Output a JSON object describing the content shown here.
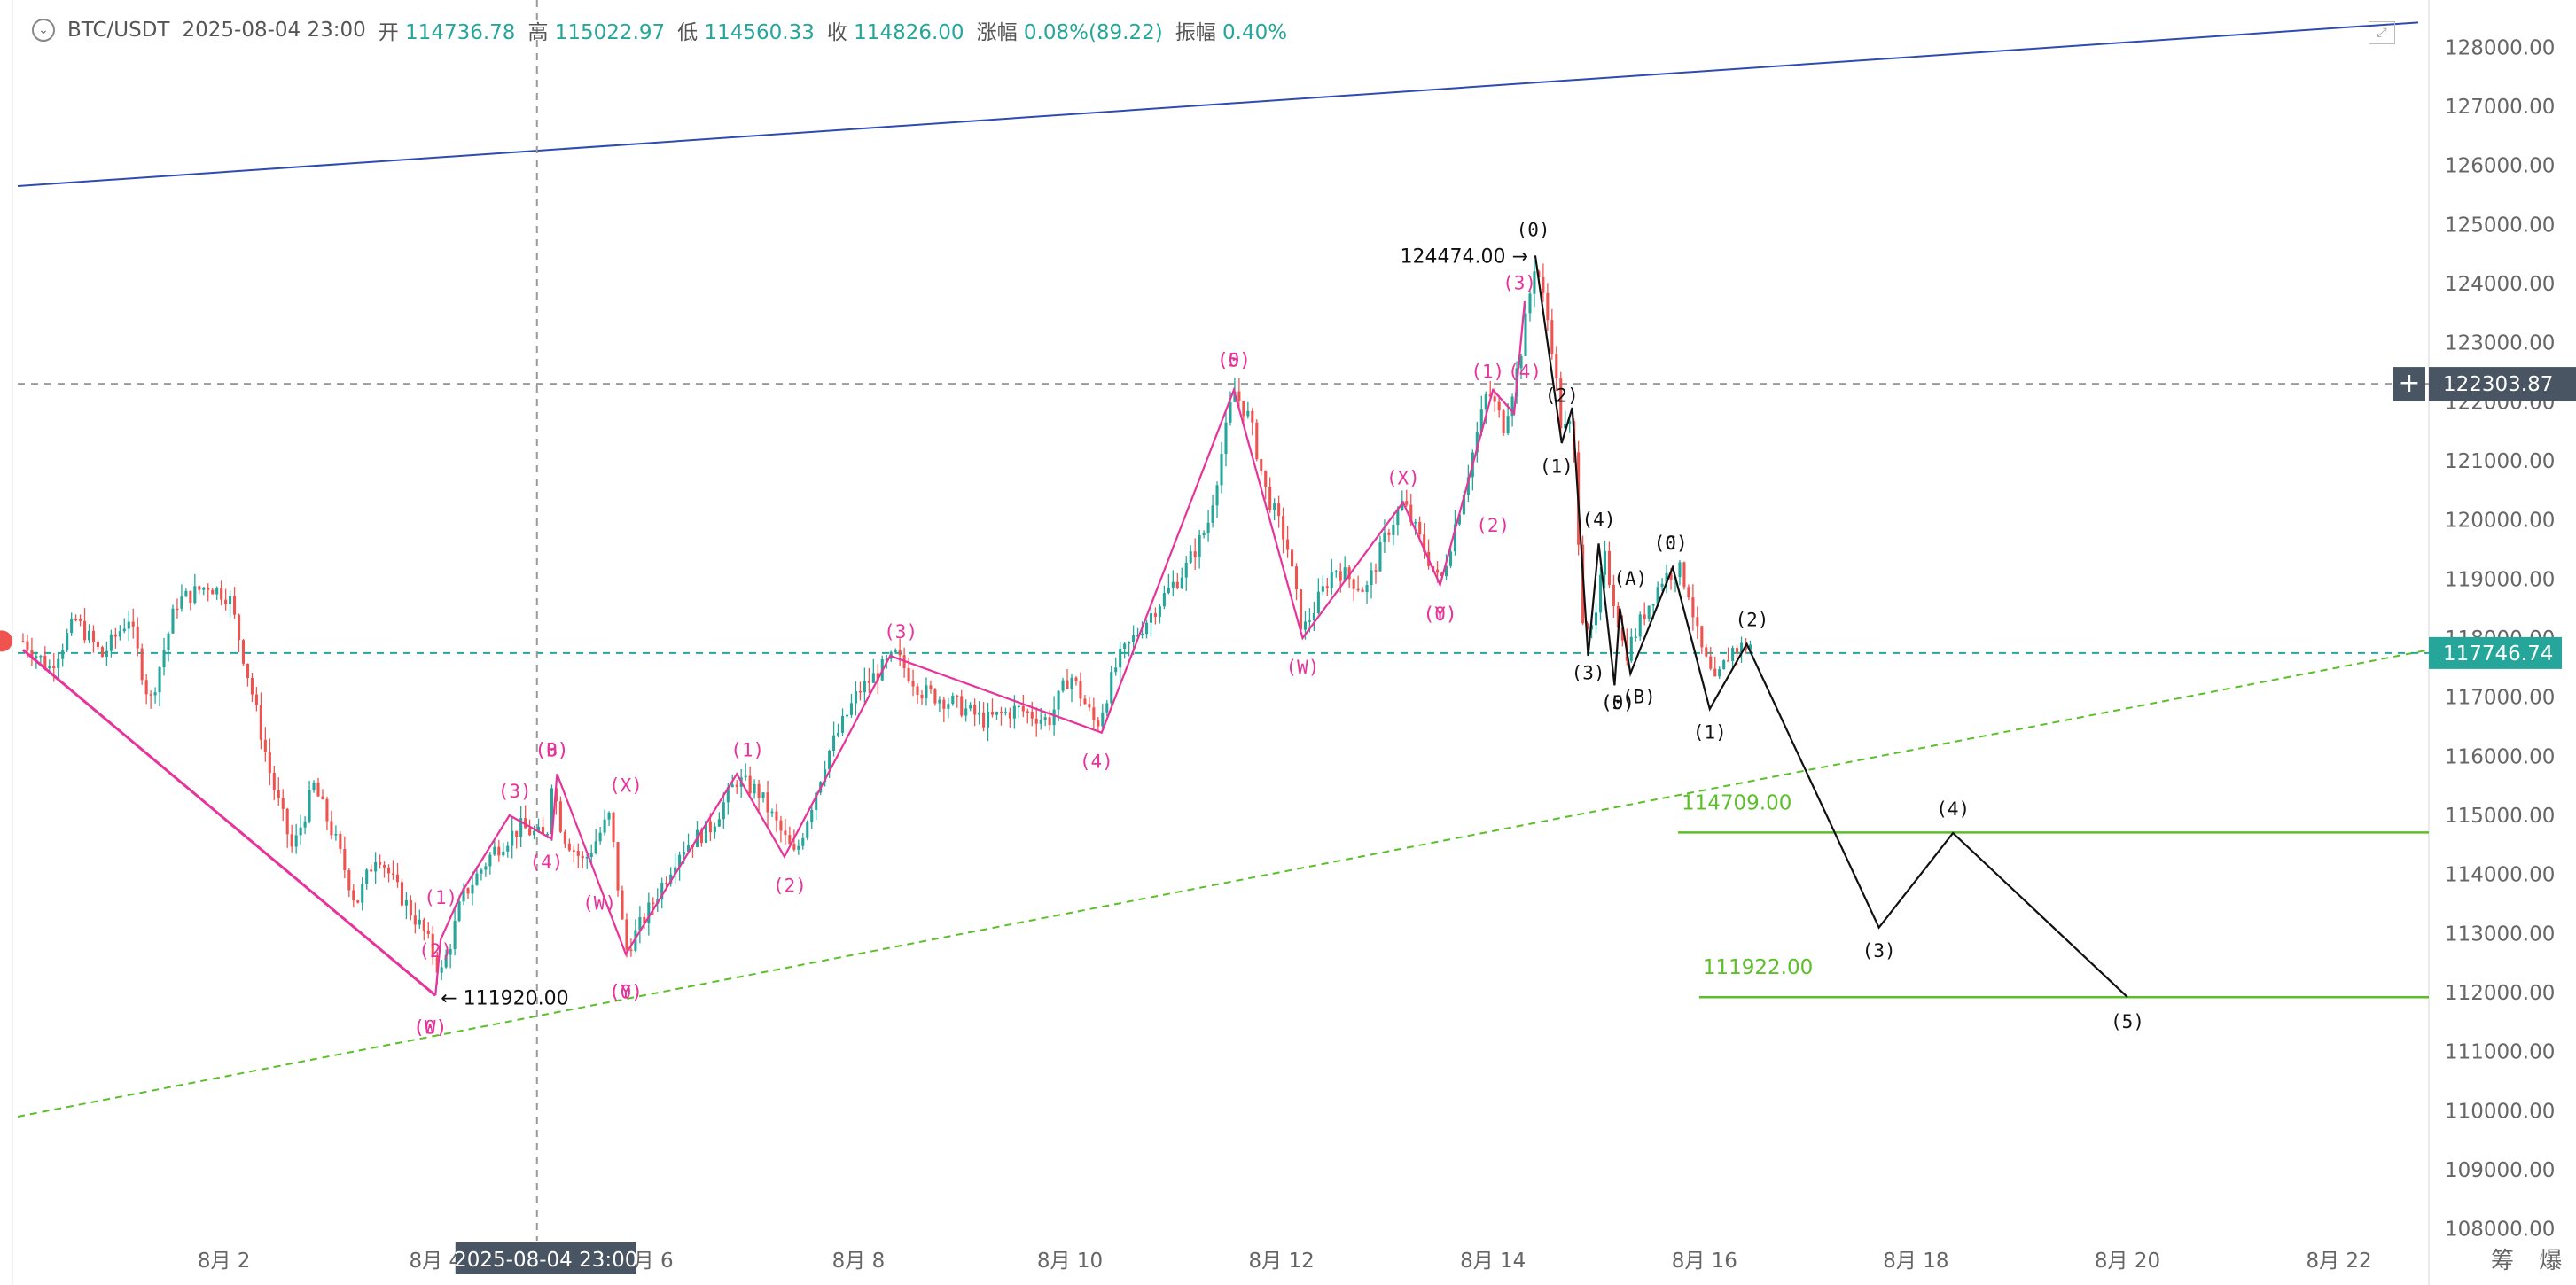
{
  "header": {
    "symbol": "BTC/USDT",
    "datetime": "2025-08-04 23:00",
    "open_label": "开",
    "open_value": "114736.78",
    "high_label": "高",
    "high_value": "115022.97",
    "low_label": "低",
    "low_value": "114560.33",
    "close_label": "收",
    "close_value": "114826.00",
    "change_label": "涨幅",
    "change_value": "0.08%(89.22)",
    "amplitude_label": "振幅",
    "amplitude_value": "0.40%"
  },
  "crosshair": {
    "time_label": "2025-08-04 23:00",
    "price_label": "122303.87"
  },
  "last_price_label": "117746.74",
  "bottom_right_text": "筹 爆",
  "colors": {
    "up": "#26a69a",
    "down": "#ef5350",
    "pink_wave": "#e8339b",
    "black_wave": "#111111",
    "channel_blue": "#2f4bb0",
    "support_green": "#5cbf2a"
  },
  "chart_data": {
    "type": "candlestick",
    "symbol": "BTC/USDT",
    "ylim": [
      107500,
      128800
    ],
    "xlim_days": [
      0.05,
      22.85
    ],
    "y_ticks": [
      "108000.00",
      "109000.00",
      "110000.00",
      "111000.00",
      "112000.00",
      "113000.00",
      "114000.00",
      "115000.00",
      "116000.00",
      "117000.00",
      "118000.00",
      "119000.00",
      "120000.00",
      "121000.00",
      "122000.00",
      "123000.00",
      "124000.00",
      "125000.00",
      "126000.00",
      "127000.00",
      "128000.00"
    ],
    "x_ticks": [
      {
        "day": 2,
        "label": "8月 2"
      },
      {
        "day": 4,
        "label": "8月 4"
      },
      {
        "day": 6,
        "label": "8月 6"
      },
      {
        "day": 8,
        "label": "8月 8"
      },
      {
        "day": 10,
        "label": "8月 10"
      },
      {
        "day": 12,
        "label": "8月 12"
      },
      {
        "day": 14,
        "label": "8月 14"
      },
      {
        "day": 16,
        "label": "8月 16"
      },
      {
        "day": 18,
        "label": "8月 18"
      },
      {
        "day": 20,
        "label": "8月 20"
      },
      {
        "day": 22,
        "label": "8月 22"
      }
    ],
    "price_anchors": [
      [
        0.1,
        117950
      ],
      [
        0.35,
        117500
      ],
      [
        0.6,
        118300
      ],
      [
        0.85,
        117700
      ],
      [
        1.1,
        118350
      ],
      [
        1.3,
        116900
      ],
      [
        1.55,
        118600
      ],
      [
        1.85,
        118900
      ],
      [
        2.05,
        118700
      ],
      [
        2.25,
        117200
      ],
      [
        2.45,
        115600
      ],
      [
        2.65,
        114400
      ],
      [
        2.85,
        115500
      ],
      [
        3.05,
        114600
      ],
      [
        3.25,
        113500
      ],
      [
        3.45,
        114400
      ],
      [
        3.65,
        113700
      ],
      [
        3.9,
        113000
      ],
      [
        4.05,
        112300
      ],
      [
        4.15,
        112900
      ],
      [
        4.25,
        113600
      ],
      [
        4.55,
        114400
      ],
      [
        4.8,
        114800
      ],
      [
        5.05,
        114600
      ],
      [
        5.1,
        115600
      ],
      [
        5.2,
        114700
      ],
      [
        5.4,
        114200
      ],
      [
        5.65,
        115000
      ],
      [
        5.75,
        113400
      ],
      [
        5.8,
        112700
      ],
      [
        6.05,
        113500
      ],
      [
        6.3,
        114400
      ],
      [
        6.6,
        114800
      ],
      [
        6.85,
        115600
      ],
      [
        7.05,
        115400
      ],
      [
        7.4,
        114300
      ],
      [
        7.7,
        116000
      ],
      [
        8.0,
        117100
      ],
      [
        8.35,
        117700
      ],
      [
        8.6,
        117100
      ],
      [
        8.9,
        116900
      ],
      [
        9.2,
        116600
      ],
      [
        9.5,
        116800
      ],
      [
        9.8,
        116600
      ],
      [
        10.0,
        117400
      ],
      [
        10.25,
        116500
      ],
      [
        10.45,
        117600
      ],
      [
        10.8,
        118500
      ],
      [
        11.1,
        119200
      ],
      [
        11.3,
        119900
      ],
      [
        11.55,
        122200
      ],
      [
        11.7,
        121700
      ],
      [
        11.85,
        120500
      ],
      [
        12.05,
        119600
      ],
      [
        12.2,
        118100
      ],
      [
        12.5,
        119200
      ],
      [
        12.8,
        118800
      ],
      [
        13.0,
        119800
      ],
      [
        13.15,
        120300
      ],
      [
        13.5,
        118900
      ],
      [
        13.75,
        120700
      ],
      [
        13.95,
        122200
      ],
      [
        14.1,
        121600
      ],
      [
        14.25,
        122700
      ],
      [
        14.4,
        124400
      ],
      [
        14.55,
        123100
      ],
      [
        14.65,
        121500
      ],
      [
        14.75,
        121600
      ],
      [
        14.85,
        118400
      ],
      [
        14.95,
        118000
      ],
      [
        15.05,
        119400
      ],
      [
        15.15,
        118600
      ],
      [
        15.25,
        117700
      ],
      [
        15.45,
        118500
      ],
      [
        15.6,
        119000
      ],
      [
        15.75,
        119200
      ],
      [
        15.85,
        118800
      ],
      [
        15.95,
        117900
      ],
      [
        16.1,
        117200
      ],
      [
        16.25,
        117800
      ],
      [
        16.45,
        117900
      ]
    ],
    "waves_pink": [
      {
        "points": [
          [
            0.1,
            117800
          ],
          [
            4.0,
            111950
          ]
        ],
        "labels": []
      },
      {
        "points": [
          [
            4.0,
            111950
          ],
          [
            4.05,
            112900
          ],
          [
            4.25,
            113700
          ],
          [
            4.7,
            115000
          ],
          [
            5.1,
            114600
          ],
          [
            5.15,
            115700
          ],
          [
            5.8,
            112650
          ],
          [
            6.85,
            115700
          ],
          [
            7.3,
            114300
          ],
          [
            8.3,
            117700
          ],
          [
            10.3,
            116400
          ],
          [
            11.55,
            122200
          ],
          [
            12.2,
            118000
          ],
          [
            13.15,
            120300
          ],
          [
            13.5,
            118900
          ],
          [
            14.0,
            122200
          ],
          [
            14.2,
            121800
          ],
          [
            14.3,
            123700
          ]
        ],
        "labels": [
          {
            "day": 3.95,
            "price": 111300,
            "text": "(0)"
          },
          {
            "day": 3.95,
            "price": 111300,
            "text": "(W)"
          },
          {
            "day": 4.0,
            "price": 112600,
            "text": "(2)"
          },
          {
            "day": 4.05,
            "price": 113500,
            "text": "(1)"
          },
          {
            "day": 4.75,
            "price": 115300,
            "text": "(3)"
          },
          {
            "day": 5.05,
            "price": 114100,
            "text": "(4)"
          },
          {
            "day": 5.1,
            "price": 116000,
            "text": "(0)"
          },
          {
            "day": 5.1,
            "price": 116000,
            "text": "(B)"
          },
          {
            "day": 5.8,
            "price": 115400,
            "text": "(X)"
          },
          {
            "day": 5.55,
            "price": 113400,
            "text": "(W)"
          },
          {
            "day": 5.8,
            "price": 111900,
            "text": "(0)"
          },
          {
            "day": 5.8,
            "price": 111900,
            "text": "(Y)"
          },
          {
            "day": 6.95,
            "price": 116000,
            "text": "(1)"
          },
          {
            "day": 7.35,
            "price": 113700,
            "text": "(2)"
          },
          {
            "day": 8.4,
            "price": 118000,
            "text": "(3)"
          },
          {
            "day": 10.25,
            "price": 115800,
            "text": "(4)"
          },
          {
            "day": 11.55,
            "price": 122600,
            "text": "(0)"
          },
          {
            "day": 11.55,
            "price": 122600,
            "text": "(5)"
          },
          {
            "day": 12.2,
            "price": 117400,
            "text": "(W)"
          },
          {
            "day": 13.15,
            "price": 120600,
            "text": "(X)"
          },
          {
            "day": 13.5,
            "price": 118300,
            "text": "(0)"
          },
          {
            "day": 13.5,
            "price": 118300,
            "text": "(Y)"
          },
          {
            "day": 13.95,
            "price": 122400,
            "text": "(1)"
          },
          {
            "day": 14.0,
            "price": 119800,
            "text": "(2)"
          },
          {
            "day": 14.25,
            "price": 123900,
            "text": "(3)"
          },
          {
            "day": 14.3,
            "price": 122400,
            "text": "(4)"
          }
        ]
      }
    ],
    "waves_black": [
      {
        "points": [
          [
            14.4,
            124474
          ],
          [
            14.65,
            121300
          ],
          [
            14.75,
            121900
          ],
          [
            14.9,
            117700
          ],
          [
            15.0,
            119600
          ],
          [
            15.15,
            117200
          ],
          [
            15.2,
            118500
          ],
          [
            15.3,
            117400
          ],
          [
            15.7,
            119200
          ],
          [
            16.05,
            116800
          ],
          [
            16.4,
            117900
          ],
          [
            17.65,
            113100
          ],
          [
            18.35,
            114700
          ],
          [
            20.0,
            111922
          ]
        ],
        "labels": [
          {
            "day": 14.38,
            "price": 124800,
            "text": "(0)"
          },
          {
            "day": 14.65,
            "price": 122000,
            "text": "(2)"
          },
          {
            "day": 14.6,
            "price": 120800,
            "text": "(1)"
          },
          {
            "day": 14.9,
            "price": 117300,
            "text": "(3)"
          },
          {
            "day": 15.0,
            "price": 119900,
            "text": "(4)"
          },
          {
            "day": 15.18,
            "price": 116800,
            "text": "(0)"
          },
          {
            "day": 15.18,
            "price": 116800,
            "text": "(5)"
          },
          {
            "day": 15.3,
            "price": 118900,
            "text": "(A)"
          },
          {
            "day": 15.38,
            "price": 116900,
            "text": "(B)"
          },
          {
            "day": 15.68,
            "price": 119500,
            "text": "(0)"
          },
          {
            "day": 15.68,
            "price": 119500,
            "text": "(C)"
          },
          {
            "day": 16.05,
            "price": 116300,
            "text": "(1)"
          },
          {
            "day": 16.45,
            "price": 118200,
            "text": "(2)"
          },
          {
            "day": 17.65,
            "price": 112600,
            "text": "(3)"
          },
          {
            "day": 18.35,
            "price": 115000,
            "text": "(4)"
          },
          {
            "day": 20.0,
            "price": 111400,
            "text": "(5)"
          }
        ]
      }
    ],
    "trendlines": [
      {
        "from": [
          0.05,
          125650
        ],
        "to": [
          22.75,
          128420
        ],
        "style": "solid",
        "color": "blue"
      },
      {
        "from": [
          0.05,
          109900
        ],
        "to": [
          22.85,
          117800
        ],
        "style": "dashed",
        "color": "green"
      }
    ],
    "horizontal_levels": [
      {
        "price": 122303.87,
        "style": "dashed",
        "color": "gray",
        "label": "122303.87"
      },
      {
        "price": 117746.74,
        "style": "dashed",
        "color": "teal",
        "label": "117746.74"
      },
      {
        "price": 114709.0,
        "from_day": 15.75,
        "label": "114709.00",
        "style": "solid",
        "color": "green"
      },
      {
        "price": 111922.0,
        "from_day": 15.95,
        "label": "111922.00",
        "style": "solid",
        "color": "green"
      }
    ],
    "price_markers": [
      {
        "day": 4.0,
        "price": 111920.0,
        "label": "111920.00",
        "side": "right"
      },
      {
        "day": 14.4,
        "price": 124474.0,
        "label": "124474.00",
        "side": "left"
      }
    ],
    "crosshair_day": 4.96
  }
}
